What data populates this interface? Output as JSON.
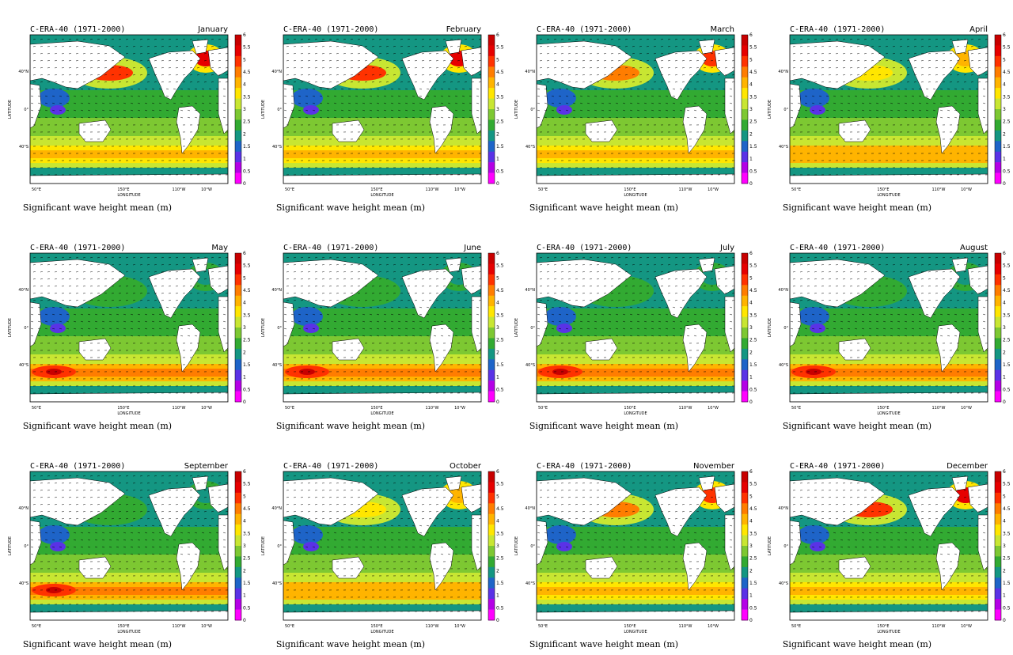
{
  "common": {
    "dataset_label": "C-ERA-40 (1971-2000)",
    "caption": "Significant wave height mean (m)",
    "ylabel": "LATITUDE",
    "xlabel": "LONGITUDE",
    "lat_ticks": [
      "40°N",
      "0°",
      "40°S"
    ],
    "lon_ticks": [
      "50°E",
      "150°E",
      "110°W",
      "10°W"
    ],
    "colorbar": {
      "labels": [
        "6",
        "5.5",
        "5",
        "4.5",
        "4",
        "3.5",
        "3",
        "2.5",
        "2",
        "1.5",
        "1",
        "0.5",
        "0"
      ],
      "colors": [
        "#c80000",
        "#e60000",
        "#ff3200",
        "#ff7d00",
        "#ffb400",
        "#ffe600",
        "#c8e632",
        "#7dc832",
        "#32aa32",
        "#149682",
        "#1e64c8",
        "#5a32e6",
        "#b400e6",
        "#ff00ff"
      ]
    }
  },
  "panels": [
    {
      "month": "January"
    },
    {
      "month": "February"
    },
    {
      "month": "March"
    },
    {
      "month": "April"
    },
    {
      "month": "May"
    },
    {
      "month": "June"
    },
    {
      "month": "July"
    },
    {
      "month": "August"
    },
    {
      "month": "September"
    },
    {
      "month": "October"
    },
    {
      "month": "November"
    },
    {
      "month": "December"
    }
  ]
}
